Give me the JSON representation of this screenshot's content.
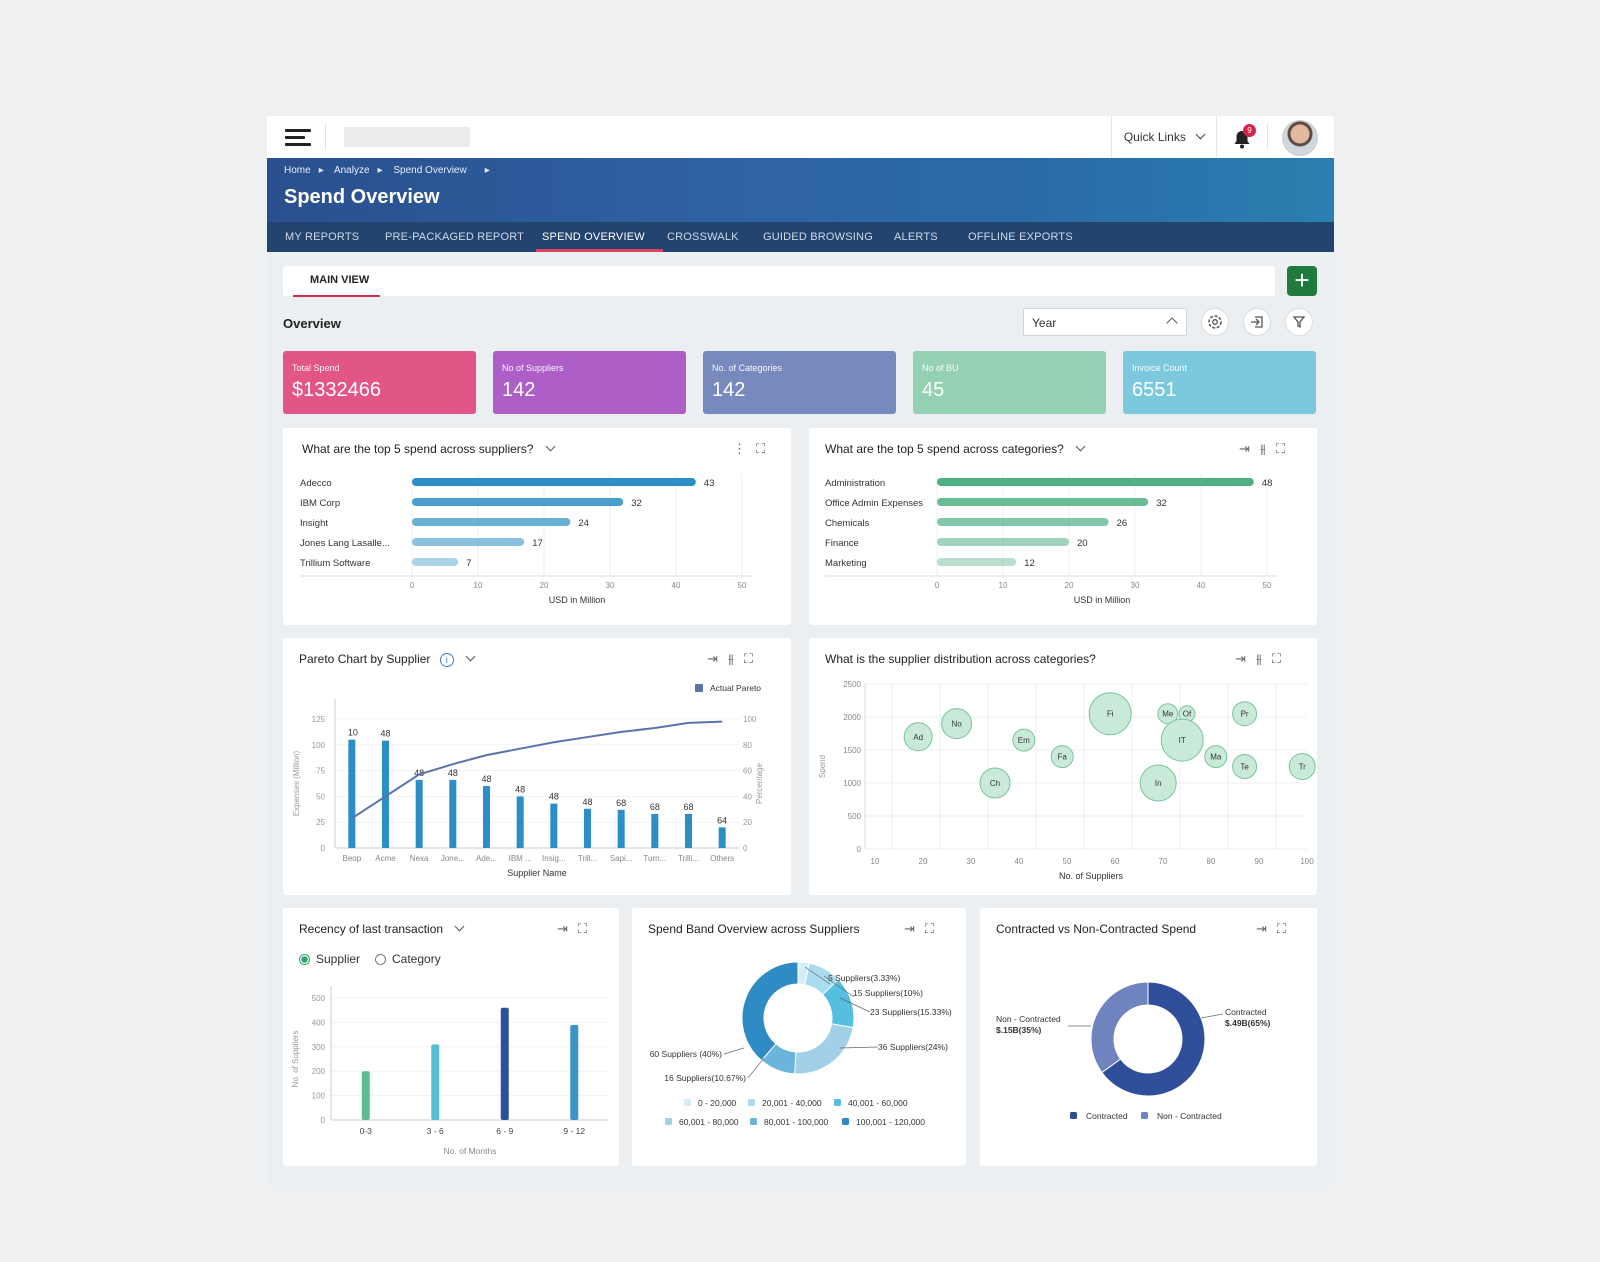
{
  "topbar": {
    "quick_links": "Quick Links",
    "notifications_count": "9"
  },
  "breadcrumbs": [
    "Home",
    "Analyze",
    "Spend Overview"
  ],
  "page_title": "Spend Overview",
  "nav_tabs": [
    "MY REPORTS",
    "PRE-PACKAGED REPORT",
    "SPEND OVERVIEW",
    "CROSSWALK",
    "GUIDED BROWSING",
    "ALERTS",
    "OFFLINE EXPORTS"
  ],
  "active_tab": "SPEND OVERVIEW",
  "view_tab": "MAIN VIEW",
  "overview": {
    "title": "Overview",
    "period_select": "Year"
  },
  "kpis": [
    {
      "label": "Total Spend",
      "value": "$1332466",
      "color": "#e25587"
    },
    {
      "label": "No of Suppliers",
      "value": "142",
      "color": "#ad5ec7"
    },
    {
      "label": "No. of Categories",
      "value": "142",
      "color": "#7889bd"
    },
    {
      "label": "No of BU",
      "value": "45",
      "color": "#94d0b2"
    },
    {
      "label": "Invoice Count",
      "value": "6551",
      "color": "#7cc9de"
    }
  ],
  "cards": {
    "suppliers": {
      "title": "What are the top 5 spend across suppliers?"
    },
    "categories": {
      "title": "What are the top 5 spend across categories?"
    },
    "pareto": {
      "title": "Pareto Chart by Supplier"
    },
    "distribution": {
      "title": "What is the supplier distribution across categories?"
    },
    "recency": {
      "title": "Recency of last transaction",
      "radio_supplier": "Supplier",
      "radio_category": "Category"
    },
    "spendband": {
      "title": "Spend Band Overview across Suppliers"
    },
    "contracted": {
      "title": "Contracted vs Non-Contracted Spend"
    }
  },
  "chart_data": [
    {
      "type": "bar",
      "id": "suppliers",
      "categories": [
        "Adecco",
        "IBM Corp",
        "Insight",
        "Jones Lang Lasalle...",
        "Trillium Software"
      ],
      "values": [
        43,
        32,
        24,
        17,
        7
      ],
      "xlabel": "USD in Million",
      "xlim": [
        0,
        50
      ],
      "ticks": [
        0,
        10,
        20,
        30,
        40,
        50
      ]
    },
    {
      "type": "bar",
      "id": "categories",
      "categories": [
        "Administration",
        "Office Admin Expenses",
        "Chemicals",
        "Finance",
        "Marketing"
      ],
      "values": [
        48,
        32,
        26,
        20,
        12
      ],
      "xlabel": "USD in Million",
      "xlim": [
        0,
        50
      ],
      "ticks": [
        0,
        10,
        20,
        30,
        40,
        50
      ]
    },
    {
      "type": "bar",
      "id": "pareto",
      "categories": [
        "Beop",
        "Acme",
        "Nexa",
        "Jone...",
        "Ade...",
        "IBM ...",
        "Insig...",
        "Trill...",
        "Sapi...",
        "Turn...",
        "Trilli...",
        "Others"
      ],
      "values": [
        105,
        104,
        66,
        66,
        60,
        50,
        43,
        38,
        37,
        33,
        33,
        20
      ],
      "labels": [
        "10",
        "48",
        "48",
        "48",
        "48",
        "48",
        "48",
        "48",
        "68",
        "68",
        "68",
        "64"
      ],
      "pareto": [
        23,
        40,
        57,
        65,
        72,
        77,
        82,
        86,
        90,
        93,
        97,
        98
      ],
      "xlabel": "Supplier Name",
      "ylabel": "Expenses (Million)",
      "y2label": "Percentage",
      "ylim": [
        0,
        125
      ],
      "y2lim": [
        0,
        100
      ],
      "yticks": [
        0,
        25,
        50,
        75,
        100,
        125
      ],
      "y2ticks": [
        0,
        20,
        40,
        60,
        80,
        100
      ],
      "legend": "Actual Pareto"
    },
    {
      "type": "scatter",
      "id": "distribution",
      "xlabel": "No. of Suppliers",
      "ylabel": "Spend",
      "xlim": [
        10,
        100
      ],
      "ylim": [
        0,
        2500
      ],
      "xticks": [
        10,
        20,
        30,
        40,
        50,
        60,
        70,
        80,
        90,
        100
      ],
      "yticks": [
        0,
        500,
        1000,
        1500,
        2000,
        2500
      ],
      "points": [
        {
          "label": "Ad",
          "x": 19,
          "y": 1700,
          "r": 14
        },
        {
          "label": "No",
          "x": 27,
          "y": 1900,
          "r": 15
        },
        {
          "label": "Em",
          "x": 41,
          "y": 1650,
          "r": 11
        },
        {
          "label": "Ch",
          "x": 35,
          "y": 1000,
          "r": 15
        },
        {
          "label": "Fa",
          "x": 49,
          "y": 1400,
          "r": 11
        },
        {
          "label": "Fi",
          "x": 59,
          "y": 2050,
          "r": 21
        },
        {
          "label": "Me",
          "x": 71,
          "y": 2050,
          "r": 10
        },
        {
          "label": "Of",
          "x": 75,
          "y": 2050,
          "r": 8
        },
        {
          "label": "IT",
          "x": 74,
          "y": 1650,
          "r": 21
        },
        {
          "label": "In",
          "x": 69,
          "y": 1000,
          "r": 18
        },
        {
          "label": "Ma",
          "x": 81,
          "y": 1400,
          "r": 11
        },
        {
          "label": "Pr",
          "x": 87,
          "y": 2050,
          "r": 12
        },
        {
          "label": "Te",
          "x": 87,
          "y": 1250,
          "r": 12
        },
        {
          "label": "Tr",
          "x": 99,
          "y": 1250,
          "r": 13
        }
      ]
    },
    {
      "type": "bar",
      "id": "recency",
      "categories": [
        "0-3",
        "3 - 6",
        "6 - 9",
        "9 - 12"
      ],
      "values": [
        200,
        310,
        460,
        390
      ],
      "colors": [
        "#5cbd8f",
        "#56bfd1",
        "#2f4f9b",
        "#3a94c9"
      ],
      "xlabel": "No. of Months",
      "ylabel": "No. of Suppliers",
      "ylim": [
        0,
        500
      ],
      "yticks": [
        0,
        100,
        200,
        300,
        400,
        500
      ]
    },
    {
      "type": "pie",
      "id": "spendband",
      "values": [
        3.33,
        10,
        15.33,
        24,
        10.67,
        40
      ],
      "labels": [
        "5 Suppliers(3.33%)",
        "15 Suppliers(10%)",
        "23 Suppliers(15.33%)",
        "36 Suppliers(24%)",
        "16 Suppliers(10.67%)",
        "60 Suppliers (40%)"
      ],
      "colors": [
        "#d5eef6",
        "#a8dcee",
        "#56bfe0",
        "#a2d0e8",
        "#69b5dc",
        "#2e8bc4"
      ],
      "legend": [
        {
          "name": "0 - 20,000",
          "color": "#d5eef6"
        },
        {
          "name": "20,001 - 40,000",
          "color": "#a8dcee"
        },
        {
          "name": "40,001 - 60,000",
          "color": "#56bfe0"
        },
        {
          "name": "60,001 - 80,000",
          "color": "#a2d0e8"
        },
        {
          "name": "80,001 - 100,000",
          "color": "#69b5dc"
        },
        {
          "name": "100,001 - 120,000",
          "color": "#2e8bc4"
        }
      ]
    },
    {
      "type": "pie",
      "id": "contracted",
      "values": [
        65,
        35
      ],
      "labels": [
        "Contracted",
        "Non - Contracted"
      ],
      "values_text": [
        "$.49B(65%)",
        "$.15B(35%)"
      ],
      "colors": [
        "#2f4f9b",
        "#6f84be"
      ],
      "legend": [
        {
          "name": "Contracted",
          "color": "#2f4f9b"
        },
        {
          "name": "Non - Contracted",
          "color": "#6f84be"
        }
      ]
    }
  ]
}
